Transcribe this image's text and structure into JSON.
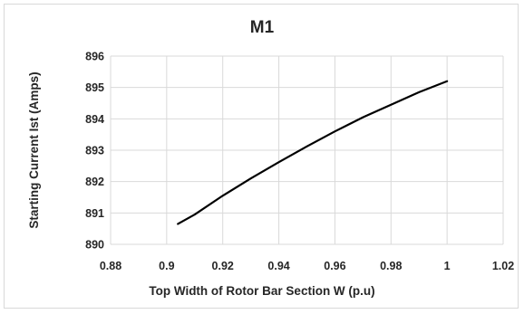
{
  "chart_data": {
    "type": "line",
    "title": "M1",
    "xlabel": "Top Width of Rotor Bar Section W (p.u)",
    "ylabel": "Starting Current Ist (Amps)",
    "xlim": [
      0.88,
      1.02
    ],
    "ylim": [
      890,
      896
    ],
    "x_ticks": [
      "0.88",
      "0.9",
      "0.92",
      "0.94",
      "0.96",
      "0.98",
      "1",
      "1.02"
    ],
    "y_ticks": [
      "890",
      "891",
      "892",
      "893",
      "894",
      "895",
      "896"
    ],
    "grid": "both",
    "legend": "none",
    "series": [
      {
        "color": "#000000",
        "x": [
          0.904,
          0.91,
          0.92,
          0.93,
          0.94,
          0.95,
          0.96,
          0.97,
          0.98,
          0.99,
          1.0
        ],
        "y": [
          890.65,
          890.95,
          891.55,
          892.1,
          892.62,
          893.12,
          893.6,
          894.05,
          894.45,
          894.85,
          895.2
        ]
      }
    ]
  }
}
